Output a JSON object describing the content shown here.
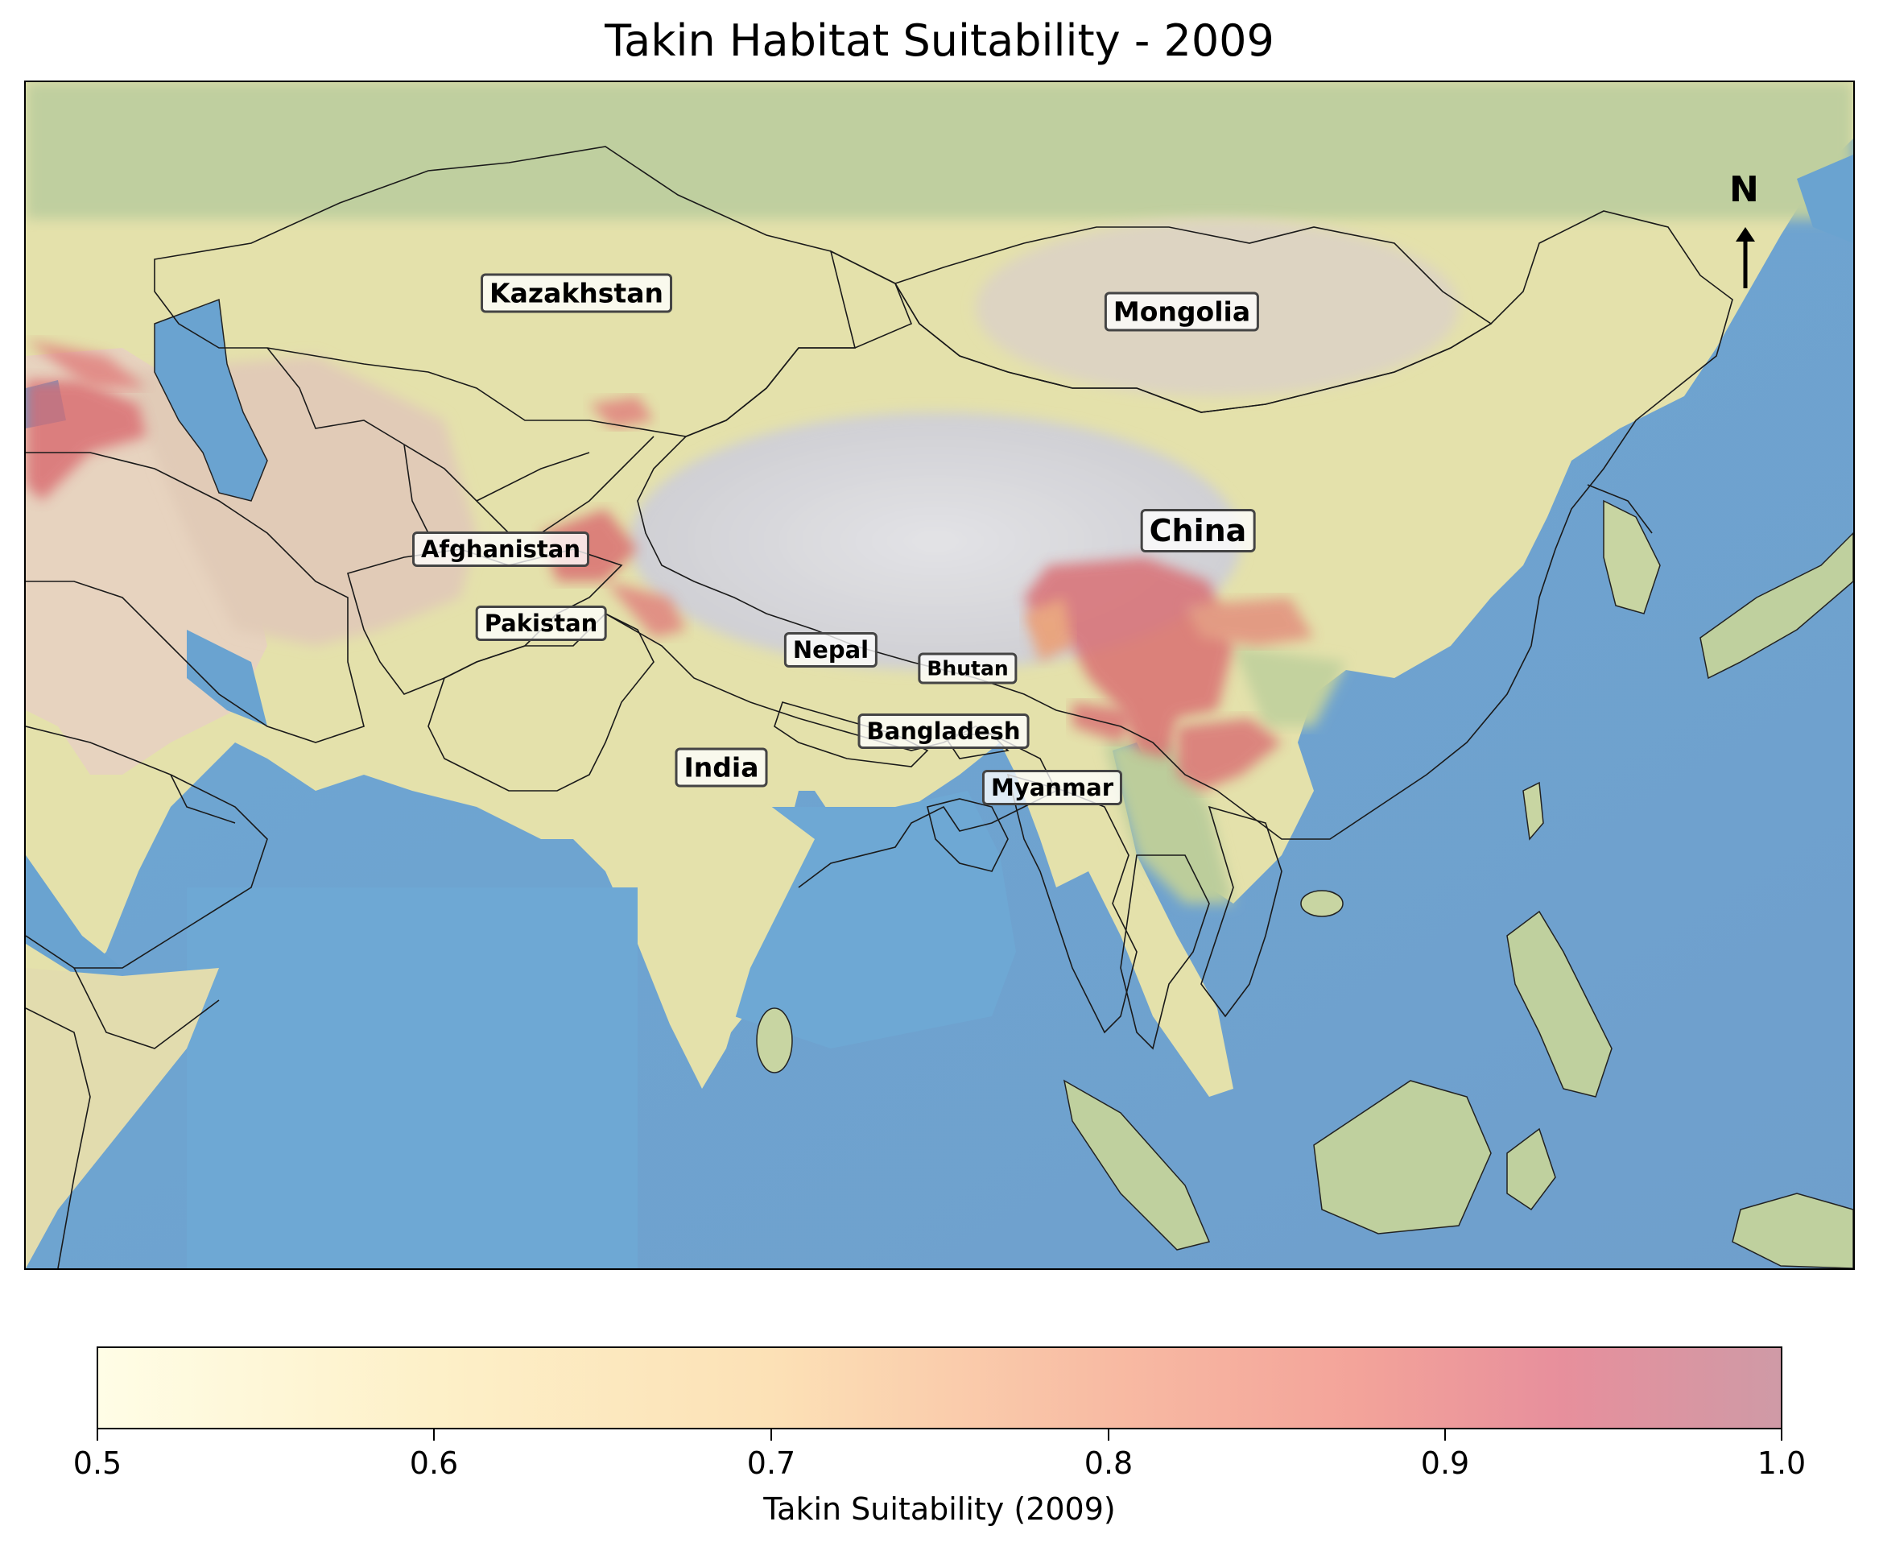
{
  "title": "Takin Habitat Suitability - 2009",
  "labels": {
    "kazakhstan": "Kazakhstan",
    "mongolia": "Mongolia",
    "china": "China",
    "afghanistan": "Afghanistan",
    "pakistan": "Pakistan",
    "nepal": "Nepal",
    "bhutan": "Bhutan",
    "bangladesh": "Bangladesh",
    "india": "India",
    "myanmar": "Myanmar"
  },
  "north_arrow": "N",
  "colorbar": {
    "label": "Takin Suitability (2009)",
    "ticks": [
      "0.5",
      "0.6",
      "0.7",
      "0.8",
      "0.9",
      "1.0"
    ],
    "range": [
      0.5,
      1.0
    ],
    "colors": [
      "#fffde6",
      "#fce1b6",
      "#f8bba3",
      "#e78f9c",
      "#cf9aa6"
    ]
  },
  "colors": {
    "ocean": "#7aaed2",
    "land": "#e6e3ae",
    "desert": "#e8d6c4",
    "highland": "#d4d4d8",
    "vegetation": "#b9cf9e",
    "suitability_high": "#d9696e",
    "suitability_mid": "#ee9a6a"
  }
}
